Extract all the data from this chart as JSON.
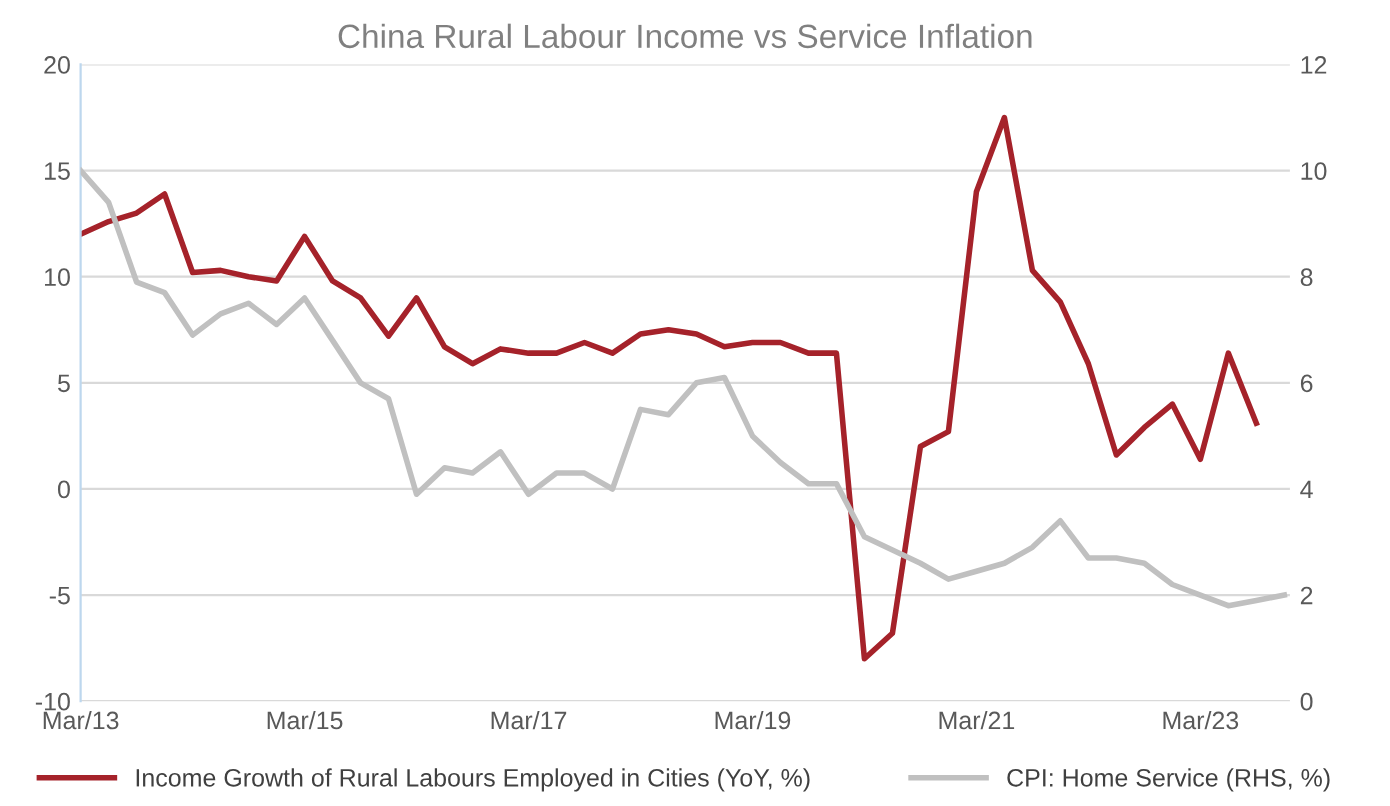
{
  "chart_data": {
    "type": "line",
    "title": "China Rural Labour Income vs Service Inflation",
    "categories": [
      "Mar/13",
      null,
      null,
      null,
      null,
      null,
      null,
      null,
      "Mar/15",
      null,
      null,
      null,
      null,
      null,
      null,
      null,
      "Mar/17",
      null,
      null,
      null,
      null,
      null,
      null,
      null,
      "Mar/19",
      null,
      null,
      null,
      null,
      null,
      null,
      null,
      "Mar/21",
      null,
      null,
      null,
      null,
      null,
      null,
      null,
      "Mar/23",
      null,
      null,
      null
    ],
    "series": [
      {
        "name": "Income Growth of Rural Labours Employed in Cities (YoY, %)",
        "color": "#a5222a",
        "values": [
          12.0,
          12.6,
          13.0,
          13.9,
          10.2,
          10.3,
          10.0,
          9.8,
          11.9,
          9.8,
          9.0,
          7.2,
          9.0,
          6.7,
          5.9,
          6.6,
          6.4,
          6.4,
          6.9,
          6.4,
          7.3,
          7.5,
          7.3,
          6.7,
          6.9,
          6.9,
          6.4,
          6.4,
          -8.0,
          -6.8,
          2.0,
          2.7,
          14.0,
          17.5,
          10.3,
          8.8,
          5.9,
          1.6,
          2.9,
          4.0,
          1.4,
          6.4,
          3.1,
          null
        ]
      },
      {
        "name": "CPI: Home Service (RHS, %)",
        "color": "#c0c0c0",
        "axis": "y2",
        "values": [
          10.0,
          9.4,
          7.9,
          7.7,
          6.9,
          7.3,
          7.5,
          7.1,
          7.6,
          6.8,
          6.0,
          5.7,
          3.9,
          4.4,
          4.3,
          4.7,
          3.9,
          4.3,
          4.3,
          4.0,
          5.5,
          5.4,
          6.0,
          6.1,
          5.0,
          4.5,
          4.1,
          4.1,
          3.1,
          2.85,
          2.6,
          2.3,
          2.45,
          2.6,
          2.9,
          3.4,
          2.7,
          2.7,
          2.6,
          2.2,
          2.0,
          1.8,
          1.9,
          2.0
        ]
      }
    ],
    "ylim": [
      -10,
      20
    ],
    "yticks": [
      -10,
      -5,
      0,
      5,
      10,
      15,
      20
    ],
    "y2lim": [
      0,
      12
    ],
    "y2ticks": [
      0,
      2,
      4,
      6,
      8,
      10,
      12
    ],
    "grid": "y",
    "legend": "bottom",
    "marker": "none",
    "line_style": "solid"
  }
}
